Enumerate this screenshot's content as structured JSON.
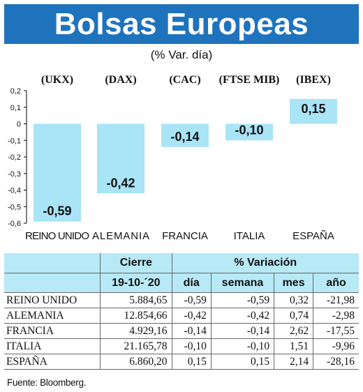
{
  "header": {
    "title": "Bolsas Europeas",
    "subtitle": "(% Var. día)"
  },
  "chart_data": {
    "type": "bar",
    "index_codes": [
      "(UKX)",
      "(DAX)",
      "(CAC)",
      "(FTSE MIB)",
      "(IBEX)"
    ],
    "categories": [
      "REINO UNIDO",
      "ALEMANIA",
      "FRANCIA",
      "ITALIA",
      "ESPAÑA"
    ],
    "values": [
      -0.59,
      -0.42,
      -0.14,
      -0.1,
      0.15
    ],
    "value_labels": [
      "-0,59",
      "-0,42",
      "-0,14",
      "-0,10",
      "0,15"
    ],
    "ylim": [
      -0.6,
      0.2
    ],
    "yticks": [
      "0,2",
      "0,1",
      "0",
      "-0,1",
      "-0,2",
      "-0,3",
      "-0,4",
      "-0,5",
      "-0,6"
    ],
    "ytick_values": [
      0.2,
      0.1,
      0,
      -0.1,
      -0.2,
      -0.3,
      -0.4,
      -0.5,
      -0.6
    ],
    "bar_color": "#a9e4f7",
    "grid": false
  },
  "table": {
    "header_row1": [
      "",
      "Cierre",
      "% Variación"
    ],
    "header_row2": [
      "",
      "19-10-´20",
      "día",
      "semana",
      "mes",
      "año"
    ],
    "rows": [
      [
        "REINO UNIDO",
        "5.884,65",
        "-0,59",
        "-0,59",
        "0,32",
        "-21,98"
      ],
      [
        "ALEMANIA",
        "12.854,66",
        "-0,42",
        "-0,42",
        "0,74",
        "-2,98"
      ],
      [
        "FRANCIA",
        "4.929,16",
        "-0,14",
        "-0,14",
        "2,62",
        "-17,55"
      ],
      [
        "ITALIA",
        "21.165,78",
        "-0,10",
        "-0,10",
        "1,51",
        "-9,96"
      ],
      [
        "ESPAÑA",
        "6.860,20",
        "0,15",
        "0,15",
        "2,14",
        "-28,16"
      ]
    ]
  },
  "footer": {
    "source": "Fuente: Bloomberg."
  },
  "colors": {
    "banner": "#1f73bd",
    "bar": "#a9e4f7",
    "table_header": "#b8e9f6"
  }
}
